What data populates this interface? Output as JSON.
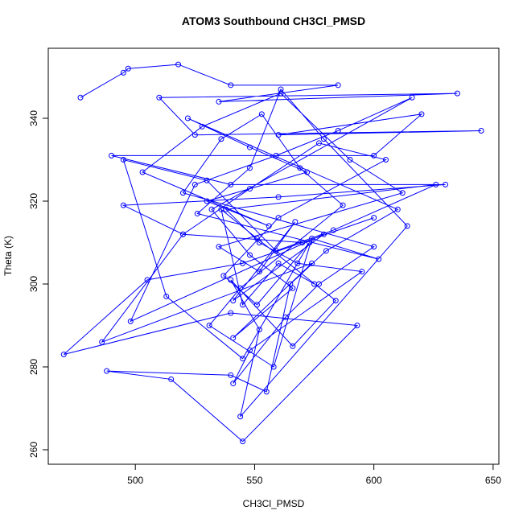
{
  "chart_data": {
    "type": "scatter-line",
    "title": "ATOM3 Southbound CH3Cl_PMSD",
    "x_label": "CH3Cl_PMSD",
    "y_label": "Theta (K)",
    "color": "#0000ff",
    "xlim": [
      463.5,
      652.4
    ],
    "ylim": [
      256.5,
      356.9
    ],
    "xticks": [
      500,
      550,
      600,
      650
    ],
    "yticks": [
      260,
      280,
      300,
      320,
      340
    ],
    "series": [
      {
        "name": "ATOM3 Southbound",
        "x": [
          477,
          495,
          497,
          518,
          540,
          585,
          535,
          635,
          510,
          525,
          645,
          560,
          620,
          600,
          490,
          540,
          630,
          560,
          495,
          520,
          570,
          600,
          545,
          505,
          470,
          540,
          593,
          545,
          515,
          488,
          540,
          555,
          565,
          580,
          610,
          522,
          548,
          572,
          530,
          556,
          503,
          528,
          561,
          590,
          612,
          535,
          552,
          567,
          541,
          579,
          498,
          525,
          559,
          585,
          616,
          532,
          548,
          566,
          541,
          574,
          486,
          520,
          548,
          577,
          605,
          560,
          537,
          551,
          573,
          545,
          513,
          495,
          530,
          559,
          583,
          626,
          538,
          552,
          568,
          595,
          548,
          541,
          563,
          577,
          600,
          520,
          536,
          553,
          569,
          587,
          544,
          531,
          558,
          574,
          602,
          526,
          548,
          561,
          579,
          614,
          544,
          552,
          540,
          566,
          584,
          551,
          536,
          545,
          560,
          575
        ],
        "values": [
          345,
          351,
          352,
          353,
          348,
          348,
          344,
          346,
          345,
          336,
          337,
          336,
          341,
          331,
          331,
          324,
          324,
          321,
          319,
          312,
          310,
          316,
          305,
          301,
          283,
          293,
          290,
          262,
          277,
          279,
          278,
          274,
          300,
          308,
          318,
          340,
          333,
          327,
          320,
          314,
          327,
          338,
          346,
          330,
          322,
          309,
          303,
          315,
          296,
          312,
          291,
          324,
          331,
          337,
          345,
          318,
          307,
          299,
          287,
          305,
          286,
          312,
          323,
          334,
          330,
          316,
          302,
          295,
          310,
          282,
          297,
          330,
          325,
          308,
          313,
          324,
          318,
          310,
          305,
          303,
          284,
          276,
          292,
          300,
          309,
          322,
          335,
          341,
          328,
          319,
          299,
          290,
          280,
          311,
          306,
          317,
          328,
          347,
          335,
          314,
          268,
          289,
          301,
          285,
          296,
          311,
          318,
          295,
          305,
          300
        ]
      }
    ]
  }
}
